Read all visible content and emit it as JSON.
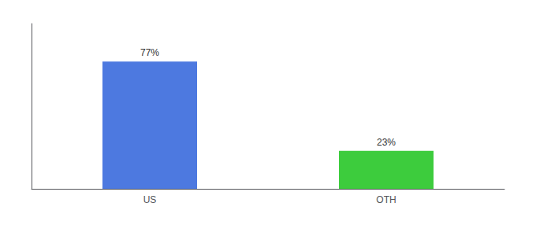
{
  "chart_data": {
    "type": "bar",
    "categories": [
      "US",
      "OTH"
    ],
    "values": [
      77,
      23
    ],
    "value_labels": [
      "77%",
      "23%"
    ],
    "colors": [
      "#4d79e0",
      "#3dcc3d"
    ],
    "data_labels": true,
    "ylim": [
      0,
      100
    ],
    "grid": false,
    "tick_labels": "x"
  }
}
